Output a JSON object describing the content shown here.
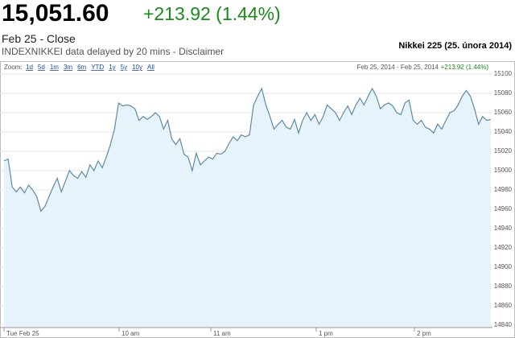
{
  "header": {
    "price": "15,051.60",
    "change": "+213.92 (1.44%)",
    "close": "Feb 25 - Close",
    "source": "INDEXNIKKEI data delayed by 20 mins - Disclaimer",
    "chart_title": "Nikkei 225 (25. února 2014)"
  },
  "toolbar": {
    "zoom_label": "Zoom:",
    "zoom_options": [
      "1d",
      "5d",
      "1m",
      "3m",
      "6m",
      "YTD",
      "1y",
      "5y",
      "10y",
      "All"
    ],
    "range": "Feb 25, 2014 - Feb 25, 2014",
    "range_change": "+213.92 (1.44%)"
  },
  "chart_data": {
    "type": "area",
    "color": "#5b8ba3",
    "fill": "#e6f3fb",
    "grid": true,
    "values": [
      15010,
      15012,
      14983,
      14978,
      14983,
      14977,
      14985,
      14980,
      14973,
      14958,
      14963,
      14973,
      14983,
      14992,
      14978,
      14989,
      15000,
      14995,
      14992,
      14999,
      14993,
      15006,
      15000,
      15010,
      15003,
      15014,
      15027,
      15043,
      15070,
      15067,
      15068,
      15067,
      15064,
      15052,
      15056,
      15053,
      15056,
      15060,
      15056,
      15043,
      15052,
      15033,
      15027,
      15033,
      15017,
      15014,
      15000,
      15018,
      15006,
      15010,
      15014,
      15012,
      15018,
      15017,
      15020,
      15028,
      15035,
      15031,
      15037,
      15035,
      15037,
      15068,
      15077,
      15085,
      15068,
      15056,
      15043,
      15048,
      15052,
      15045,
      15043,
      15053,
      15039,
      15052,
      15060,
      15052,
      15058,
      15048,
      15056,
      15068,
      15064,
      15060,
      15052,
      15060,
      15067,
      15058,
      15068,
      15075,
      15068,
      15077,
      15085,
      15077,
      15064,
      15068,
      15070,
      15067,
      15060,
      15058,
      15070,
      15073,
      15052,
      15048,
      15052,
      15045,
      15043,
      15039,
      15048,
      15043,
      15052,
      15060,
      15062,
      15068,
      15077,
      15083,
      15077,
      15064,
      15048,
      15056,
      15052,
      15053
    ],
    "xlim": [
      0,
      121
    ],
    "xticks": [
      {
        "value": 0,
        "label": "Tue Feb 25"
      },
      {
        "value": 28.6,
        "label": "10 am"
      },
      {
        "value": 51.4,
        "label": "11 am"
      },
      {
        "value": 77.6,
        "label": "1 pm"
      },
      {
        "value": 102,
        "label": "2 pm"
      }
    ],
    "ylim": [
      14837.5,
      15105
    ],
    "yticks": [
      14840,
      14860,
      14880,
      14900,
      14920,
      14940,
      14960,
      14980,
      15000,
      15020,
      15040,
      15060,
      15080,
      15100
    ]
  }
}
